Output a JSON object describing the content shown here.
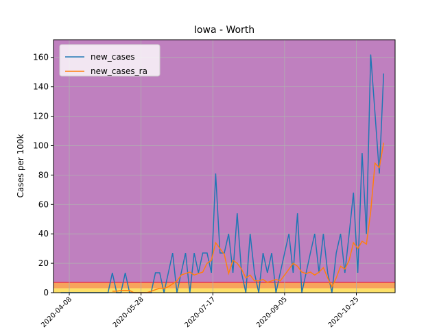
{
  "chart_data": {
    "type": "line",
    "title": "Iowa - Worth",
    "ylabel": "Cases per 100k",
    "x": [
      "2020-04-02",
      "2020-04-05",
      "2020-04-08",
      "2020-04-11",
      "2020-04-14",
      "2020-04-17",
      "2020-04-20",
      "2020-04-23",
      "2020-04-26",
      "2020-04-29",
      "2020-05-02",
      "2020-05-05",
      "2020-05-08",
      "2020-05-11",
      "2020-05-14",
      "2020-05-17",
      "2020-05-20",
      "2020-05-23",
      "2020-05-26",
      "2020-05-29",
      "2020-06-01",
      "2020-06-04",
      "2020-06-07",
      "2020-06-10",
      "2020-06-13",
      "2020-06-16",
      "2020-06-19",
      "2020-06-22",
      "2020-06-25",
      "2020-06-28",
      "2020-07-01",
      "2020-07-04",
      "2020-07-07",
      "2020-07-10",
      "2020-07-13",
      "2020-07-16",
      "2020-07-19",
      "2020-07-22",
      "2020-07-25",
      "2020-07-28",
      "2020-07-31",
      "2020-08-03",
      "2020-08-06",
      "2020-08-09",
      "2020-08-12",
      "2020-08-15",
      "2020-08-18",
      "2020-08-21",
      "2020-08-24",
      "2020-08-27",
      "2020-08-30",
      "2020-09-02",
      "2020-09-05",
      "2020-09-08",
      "2020-09-11",
      "2020-09-14",
      "2020-09-17",
      "2020-09-20",
      "2020-09-23",
      "2020-09-26",
      "2020-09-29",
      "2020-10-02",
      "2020-10-05",
      "2020-10-08",
      "2020-10-11",
      "2020-10-14",
      "2020-10-17",
      "2020-10-20",
      "2020-10-23",
      "2020-10-26",
      "2020-10-29",
      "2020-11-01",
      "2020-11-04",
      "2020-11-07",
      "2020-11-10",
      "2020-11-13"
    ],
    "series": [
      {
        "name": "new_cases",
        "color": "#1f77b4",
        "values": [
          0,
          0,
          0,
          0,
          0,
          0,
          0,
          0,
          0,
          0,
          0,
          0,
          13.5,
          0,
          0,
          13.5,
          0,
          0,
          0,
          0,
          0,
          0,
          13.5,
          13.5,
          0,
          13.5,
          27,
          0,
          13.5,
          27,
          0,
          27,
          13.5,
          27,
          27,
          13.5,
          81,
          27,
          27,
          40,
          13.5,
          54,
          13.5,
          0,
          40,
          13.5,
          0,
          27,
          13.5,
          27,
          0,
          13.5,
          27,
          40,
          13.5,
          54,
          0,
          13.5,
          27,
          40,
          13.5,
          40,
          13.5,
          0,
          27,
          40,
          13.5,
          40,
          68,
          13.5,
          95,
          40,
          162,
          122,
          81,
          149
        ]
      },
      {
        "name": "new_cases_ra",
        "color": "#ff7f0e",
        "values": [
          null,
          null,
          null,
          null,
          null,
          null,
          null,
          null,
          null,
          null,
          null,
          null,
          1,
          1,
          1.5,
          1.5,
          1.5,
          0,
          0,
          0,
          0,
          1,
          2,
          3,
          3,
          4,
          6,
          8,
          12,
          13,
          14,
          12,
          13,
          14,
          20,
          22,
          34,
          30,
          26,
          13,
          22,
          20,
          16,
          10,
          12,
          8,
          8,
          9,
          7,
          8,
          9,
          8,
          12,
          16,
          20,
          18,
          14,
          13,
          14,
          12,
          14,
          17,
          10,
          4,
          10,
          18,
          16,
          22,
          34,
          30,
          35,
          33,
          55,
          88,
          85,
          102
        ]
      }
    ],
    "xlim": [
      "2020-03-28",
      "2020-11-21"
    ],
    "xticks": [
      "2020-04-08",
      "2020-05-28",
      "2020-07-17",
      "2020-09-05",
      "2020-10-25"
    ],
    "ylim": [
      0,
      172
    ],
    "yticks": [
      0,
      20,
      40,
      60,
      80,
      100,
      120,
      140,
      160
    ],
    "grid": true,
    "legend": "upper left",
    "bands": [
      {
        "from": 0,
        "to": 3,
        "color": "#fce068"
      },
      {
        "from": 3,
        "to": 7,
        "color": "#f7a35c"
      },
      {
        "from": 7,
        "to": 172,
        "color": "#bf80bf"
      }
    ]
  }
}
